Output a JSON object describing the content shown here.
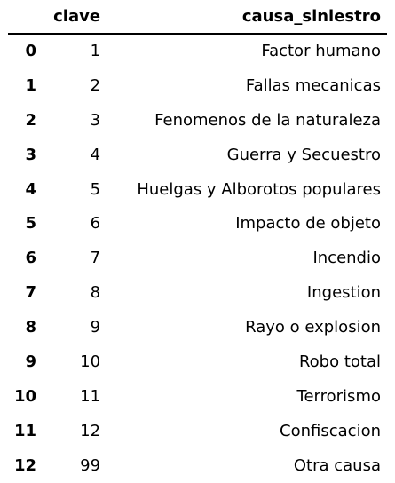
{
  "table": {
    "index_header": "",
    "columns": [
      "clave",
      "causa_siniestro"
    ],
    "rows": [
      {
        "index": "0",
        "clave": "1",
        "causa": "Factor humano"
      },
      {
        "index": "1",
        "clave": "2",
        "causa": "Fallas mecanicas"
      },
      {
        "index": "2",
        "clave": "3",
        "causa": "Fenomenos de la naturaleza"
      },
      {
        "index": "3",
        "clave": "4",
        "causa": "Guerra y Secuestro"
      },
      {
        "index": "4",
        "clave": "5",
        "causa": "Huelgas y Alborotos populares"
      },
      {
        "index": "5",
        "clave": "6",
        "causa": "Impacto de objeto"
      },
      {
        "index": "6",
        "clave": "7",
        "causa": "Incendio"
      },
      {
        "index": "7",
        "clave": "8",
        "causa": "Ingestion"
      },
      {
        "index": "8",
        "clave": "9",
        "causa": "Rayo o explosion"
      },
      {
        "index": "9",
        "clave": "10",
        "causa": "Robo total"
      },
      {
        "index": "10",
        "clave": "11",
        "causa": "Terrorismo"
      },
      {
        "index": "11",
        "clave": "12",
        "causa": "Confiscacion"
      },
      {
        "index": "12",
        "clave": "99",
        "causa": "Otra causa"
      }
    ]
  }
}
